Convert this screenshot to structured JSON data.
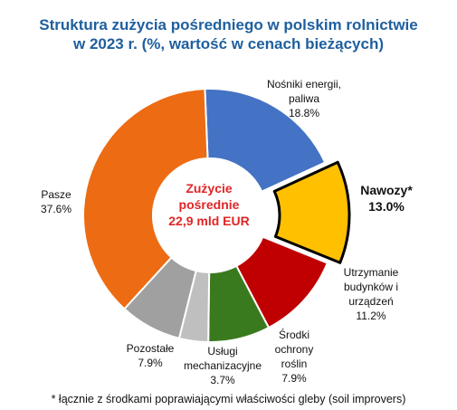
{
  "chart_data": {
    "type": "pie",
    "title_lines": [
      "Struktura zużycia pośredniego w polskim rolnictwie",
      "w 2023 r. (%, wartość w cenach bieżących)"
    ],
    "center_label_lines": [
      "Zużycie",
      "pośrednie",
      "22,9 mld EUR"
    ],
    "slices": [
      {
        "label_lines": [
          "Nośniki energii,",
          "paliwa"
        ],
        "value": 18.8,
        "value_label": "18.8%",
        "color": "#4472C4"
      },
      {
        "label_lines": [
          "Nawozy*"
        ],
        "value": 13.0,
        "value_label": "13.0%",
        "color": "#FFC000",
        "highlighted": true
      },
      {
        "label_lines": [
          "Utrzymanie",
          "budynków i",
          "urządzeń"
        ],
        "value": 11.2,
        "value_label": "11.2%",
        "color": "#C00000"
      },
      {
        "label_lines": [
          "Środki",
          "ochrony",
          "roślin"
        ],
        "value": 7.9,
        "value_label": "7.9%",
        "color": "#3A7A1E"
      },
      {
        "label_lines": [
          "Usługi",
          "mechanizacyjne"
        ],
        "value": 3.7,
        "value_label": "3.7%",
        "color": "#BFBFBF"
      },
      {
        "label_lines": [
          "Pozostałe"
        ],
        "value": 7.9,
        "value_label": "7.9%",
        "color": "#A0A0A0"
      },
      {
        "label_lines": [
          "Pasze"
        ],
        "value": 37.6,
        "value_label": "37.6%",
        "color": "#ED6B12"
      }
    ],
    "footnote": "* łącznie z środkami poprawiającymi właściwości gleby (soil improvers)"
  }
}
